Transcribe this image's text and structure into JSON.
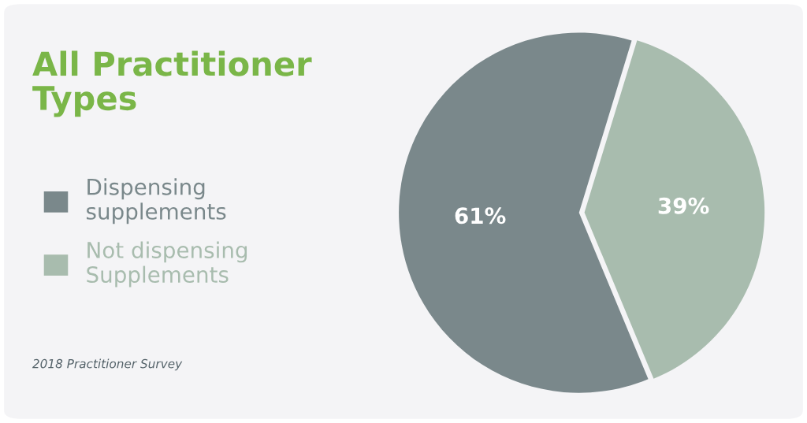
{
  "chart_data": {
    "type": "pie",
    "title": "All Practitioner Types",
    "categories": [
      "Dispensing supplements",
      "Not dispensing Supplements"
    ],
    "values": [
      61,
      39
    ],
    "colors": [
      "#7a888b",
      "#a8bcae"
    ],
    "value_labels": [
      "61%",
      "39%"
    ],
    "legend": "left",
    "annotations": [
      "2018 Practitioner Survey"
    ]
  }
}
